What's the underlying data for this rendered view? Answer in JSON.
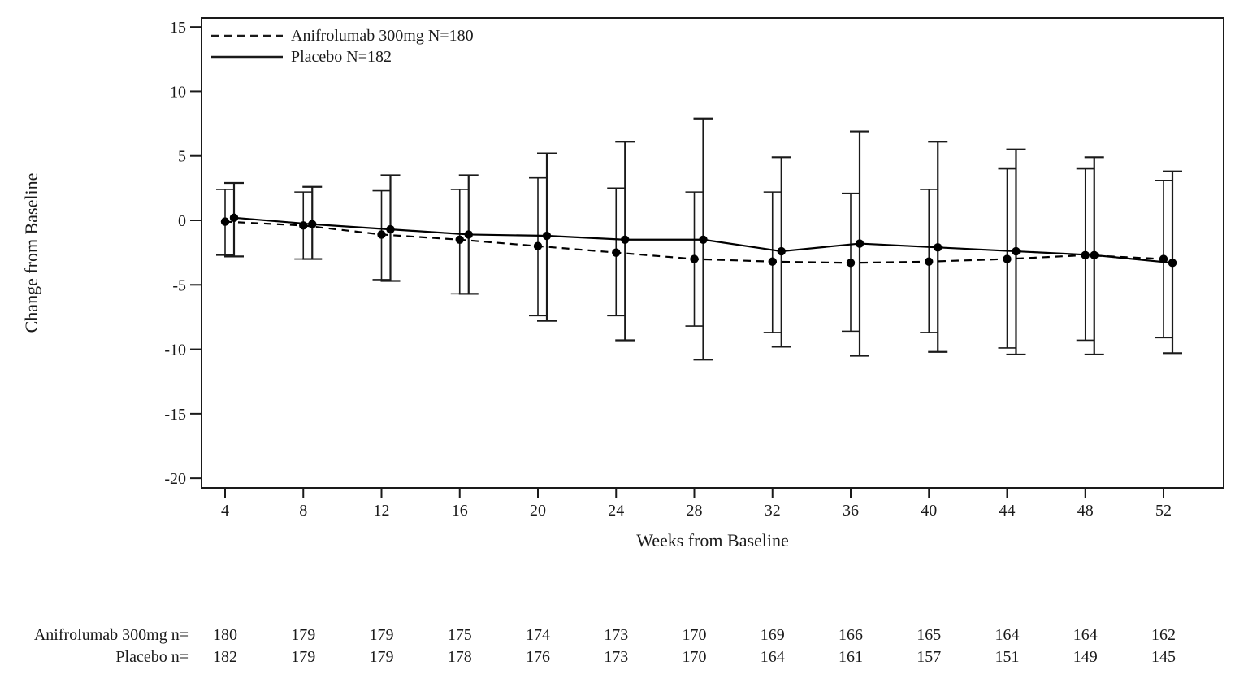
{
  "accent_color": "#000000",
  "chart_data": {
    "type": "line",
    "title": "",
    "xlabel": "Weeks from Baseline",
    "ylabel": "Change from Baseline",
    "x": [
      4,
      8,
      12,
      16,
      20,
      24,
      28,
      32,
      36,
      40,
      44,
      48,
      52
    ],
    "xticks": [
      4,
      8,
      12,
      16,
      20,
      24,
      28,
      32,
      36,
      40,
      44,
      48,
      52
    ],
    "yticks": [
      15,
      10,
      5,
      0,
      -5,
      -10,
      -15,
      -20
    ],
    "ylim": [
      -20,
      15
    ],
    "grid": false,
    "legend_position": "top-left-inside",
    "series": [
      {
        "name": "Anifrolumab 300mg N=180",
        "line_style": "dashed",
        "marker": "filled-circle",
        "color": "#000000",
        "values": [
          -0.1,
          -0.4,
          -1.1,
          -1.5,
          -2.0,
          -2.5,
          -3.0,
          -3.2,
          -3.3,
          -3.2,
          -3.0,
          -2.7,
          -3.0
        ],
        "error_upper": [
          2.4,
          2.2,
          2.3,
          2.4,
          3.3,
          2.5,
          2.2,
          2.2,
          2.1,
          2.4,
          4.0,
          4.0,
          3.1
        ],
        "error_lower": [
          -2.7,
          -3.0,
          -4.6,
          -5.7,
          -7.4,
          -7.4,
          -8.2,
          -8.7,
          -8.6,
          -8.7,
          -9.9,
          -9.3,
          -9.1
        ]
      },
      {
        "name": "Placebo N=182",
        "line_style": "solid",
        "marker": "filled-circle",
        "color": "#000000",
        "values": [
          0.2,
          -0.3,
          -0.7,
          -1.1,
          -1.2,
          -1.5,
          -1.5,
          -2.4,
          -1.8,
          -2.1,
          -2.4,
          -2.7,
          -3.3
        ],
        "error_upper": [
          2.9,
          2.6,
          3.5,
          3.5,
          5.2,
          6.1,
          7.9,
          4.9,
          6.9,
          6.1,
          5.5,
          4.9,
          3.8
        ],
        "error_lower": [
          -2.8,
          -3.0,
          -4.7,
          -5.7,
          -7.8,
          -9.3,
          -10.8,
          -9.8,
          -10.5,
          -10.2,
          -10.4,
          -10.4,
          -10.3
        ]
      }
    ]
  },
  "at_risk_table": {
    "rows": [
      {
        "label": "Anifrolumab 300mg n=",
        "values": [
          180,
          179,
          179,
          175,
          174,
          173,
          170,
          169,
          166,
          165,
          164,
          164,
          162
        ]
      },
      {
        "label": "Placebo n=",
        "values": [
          182,
          179,
          179,
          178,
          176,
          173,
          170,
          164,
          161,
          157,
          151,
          149,
          145
        ]
      }
    ]
  }
}
